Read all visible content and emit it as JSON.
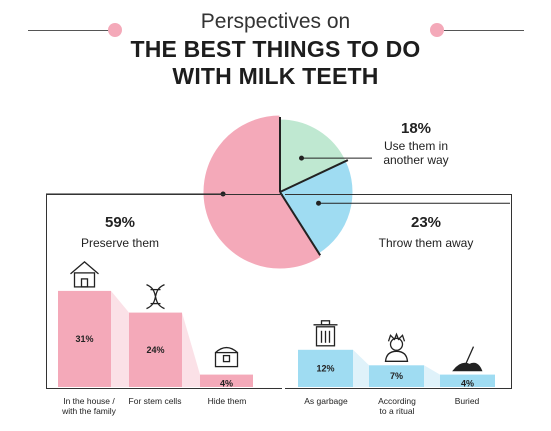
{
  "header": {
    "subtitle": "Perspectives on",
    "title_line1": "THE BEST THINGS TO DO",
    "title_line2": "WITH MILK TEETH"
  },
  "colors": {
    "pink": "#f4a9b9",
    "pink_light": "#fbe1e7",
    "green": "#bfe8d1",
    "blue": "#9fdcf2",
    "blue_light": "#dff2fa",
    "accent_pink": "#f4a9b9"
  },
  "chart_data": [
    {
      "type": "pie",
      "slices": [
        {
          "name": "Preserve them",
          "value": 59,
          "label": "59%",
          "color": "#f4a9b9"
        },
        {
          "name": "Use them in another way",
          "value": 18,
          "label": "18%",
          "color": "#bfe8d1"
        },
        {
          "name": "Throw them away",
          "value": 23,
          "label": "23%",
          "color": "#9fdcf2"
        }
      ]
    },
    {
      "type": "bar",
      "group": "Preserve them",
      "categories": [
        "In the house / with the family",
        "For stem cells",
        "Hide them"
      ],
      "values": [
        31,
        24,
        4
      ],
      "labels": [
        "31%",
        "24%",
        "4%"
      ],
      "icons": [
        "house-icon",
        "dna-icon",
        "treasure-chest-icon"
      ],
      "color": "#f4a9b9"
    },
    {
      "type": "bar",
      "group": "Throw them away",
      "categories": [
        "As garbage",
        "According to a ritual",
        "Buried"
      ],
      "values": [
        12,
        7,
        4
      ],
      "labels": [
        "12%",
        "7%",
        "4%"
      ],
      "icons": [
        "trash-can-icon",
        "shaman-icon",
        "shovel-icon"
      ],
      "color": "#9fdcf2"
    }
  ],
  "annotations": {
    "preserve": {
      "pct": "59%",
      "label": "Preserve them"
    },
    "other": {
      "pct": "18%",
      "label_line1": "Use them in",
      "label_line2": "another way"
    },
    "throw": {
      "pct": "23%",
      "label": "Throw them away"
    }
  },
  "categories_text": {
    "house_line1": "In the house /",
    "house_line2": "with the family",
    "stem": "For stem cells",
    "hide": "Hide them",
    "garbage": "As garbage",
    "ritual_line1": "According",
    "ritual_line2": "to a ritual",
    "buried": "Buried"
  }
}
